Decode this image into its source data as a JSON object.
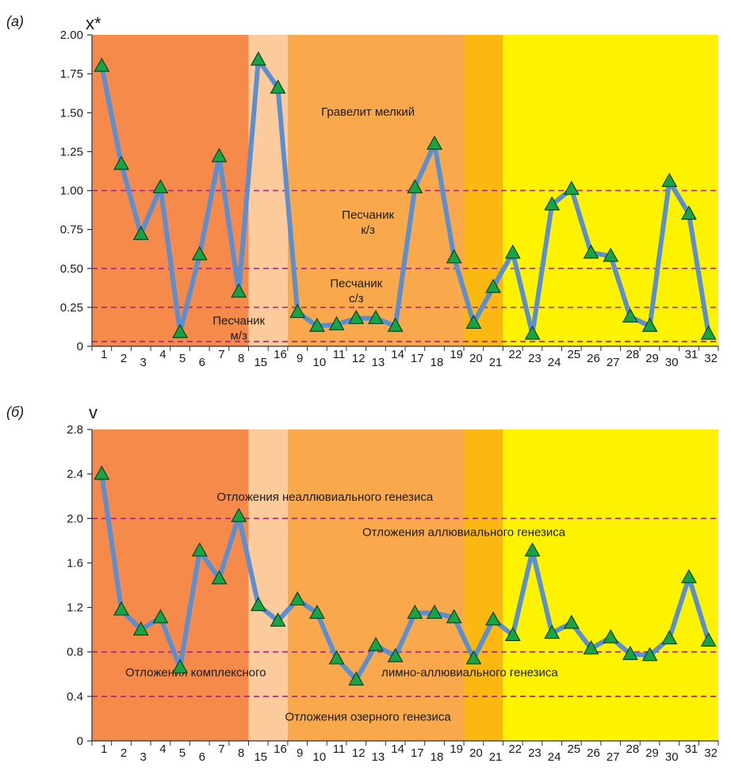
{
  "chart_data": [
    {
      "type": "line",
      "panel_label": "(а)",
      "ylabel": "x*",
      "ylim": [
        0,
        2
      ],
      "yticks": [
        "0",
        "0.25",
        "0.50",
        "0.75",
        "1.00",
        "1.25",
        "1.50",
        "1.75",
        "2.00"
      ],
      "ytick_values": [
        0,
        0.25,
        0.5,
        0.75,
        1.0,
        1.25,
        1.5,
        1.75,
        2.0
      ],
      "categories": [
        "1",
        "2",
        "3",
        "4",
        "5",
        "6",
        "7",
        "8",
        "15",
        "16",
        "9",
        "10",
        "11",
        "12",
        "13",
        "14",
        "17",
        "18",
        "19",
        "20",
        "21",
        "22",
        "23",
        "24",
        "25",
        "26",
        "27",
        "28",
        "29",
        "30",
        "31",
        "32"
      ],
      "values": [
        1.8,
        1.17,
        0.72,
        1.02,
        0.09,
        0.59,
        1.22,
        0.35,
        1.84,
        1.66,
        0.22,
        0.13,
        0.14,
        0.18,
        0.18,
        0.13,
        1.02,
        1.3,
        0.57,
        0.15,
        0.38,
        0.6,
        0.08,
        0.91,
        1.01,
        0.6,
        0.58,
        0.19,
        0.13,
        1.06,
        0.85,
        0.08
      ],
      "bands": [
        {
          "from": 0,
          "to": 8,
          "color": "#f58a4a"
        },
        {
          "from": 8,
          "to": 10,
          "color": "#fbcb9c"
        },
        {
          "from": 10,
          "to": 19,
          "color": "#f9a84c"
        },
        {
          "from": 19,
          "to": 21,
          "color": "#fbb811"
        },
        {
          "from": 21,
          "to": 32,
          "color": "#fdf200"
        }
      ],
      "thresholds": [
        1.0,
        0.5,
        0.25,
        0.03
      ],
      "annotations": [
        {
          "lines": [
            "Гравелит мелкий"
          ],
          "x": 14.1,
          "y": 1.48
        },
        {
          "lines": [
            "Песчаник",
            "к/з"
          ],
          "x": 14.1,
          "y": 0.82
        },
        {
          "lines": [
            "Песчаник",
            "с/з"
          ],
          "x": 13.5,
          "y": 0.38
        },
        {
          "lines": [
            "Песчаник",
            "м/з"
          ],
          "x": 7.5,
          "y": 0.14
        }
      ],
      "grid": false
    },
    {
      "type": "line",
      "panel_label": "(б)",
      "ylabel": "v",
      "ylim": [
        0,
        2.8
      ],
      "yticks": [
        "0",
        "0.4",
        "0.8",
        "1.2",
        "1.6",
        "2.0",
        "2.4",
        "2.8"
      ],
      "ytick_values": [
        0,
        0.4,
        0.8,
        1.2,
        1.6,
        2.0,
        2.4,
        2.8
      ],
      "categories": [
        "1",
        "2",
        "3",
        "4",
        "5",
        "6",
        "7",
        "8",
        "15",
        "16",
        "9",
        "10",
        "11",
        "12",
        "13",
        "14",
        "17",
        "18",
        "19",
        "20",
        "21",
        "22",
        "23",
        "24",
        "25",
        "26",
        "27",
        "28",
        "29",
        "30",
        "31",
        "32"
      ],
      "values": [
        2.4,
        1.18,
        1.0,
        1.11,
        0.66,
        1.71,
        1.46,
        2.02,
        1.22,
        1.08,
        1.27,
        1.15,
        0.74,
        0.55,
        0.86,
        0.76,
        1.15,
        1.15,
        1.11,
        0.74,
        1.09,
        0.95,
        1.71,
        0.97,
        1.06,
        0.83,
        0.93,
        0.78,
        0.77,
        0.92,
        1.47,
        0.9
      ],
      "bands": [
        {
          "from": 0,
          "to": 8,
          "color": "#f58a4a"
        },
        {
          "from": 8,
          "to": 10,
          "color": "#fbcb9c"
        },
        {
          "from": 10,
          "to": 19,
          "color": "#f9a84c"
        },
        {
          "from": 19,
          "to": 21,
          "color": "#fbb811"
        },
        {
          "from": 21,
          "to": 32,
          "color": "#fdf200"
        }
      ],
      "thresholds": [
        2.0,
        0.8,
        0.4
      ],
      "annotations": [
        {
          "lines": [
            "Отложения неаллювиального генезиса"
          ],
          "x": 11.9,
          "y": 2.16
        },
        {
          "lines": [
            "Отложения аллювиального генезиса"
          ],
          "x": 19.0,
          "y": 1.84
        },
        {
          "lines": [
            "Отложения комплексного"
          ],
          "x": 5.3,
          "y": 0.58
        },
        {
          "lines": [
            "лимно-аллювиального генезиса"
          ],
          "x": 19.3,
          "y": 0.58
        },
        {
          "lines": [
            "Отложения озерного генезиса"
          ],
          "x": 14.1,
          "y": 0.18
        }
      ],
      "grid": false
    }
  ],
  "colors": {
    "line": "#5b8fd0",
    "marker_fill": "#17a447",
    "marker_stroke": "#0a3a18",
    "threshold": "#a3276c"
  }
}
